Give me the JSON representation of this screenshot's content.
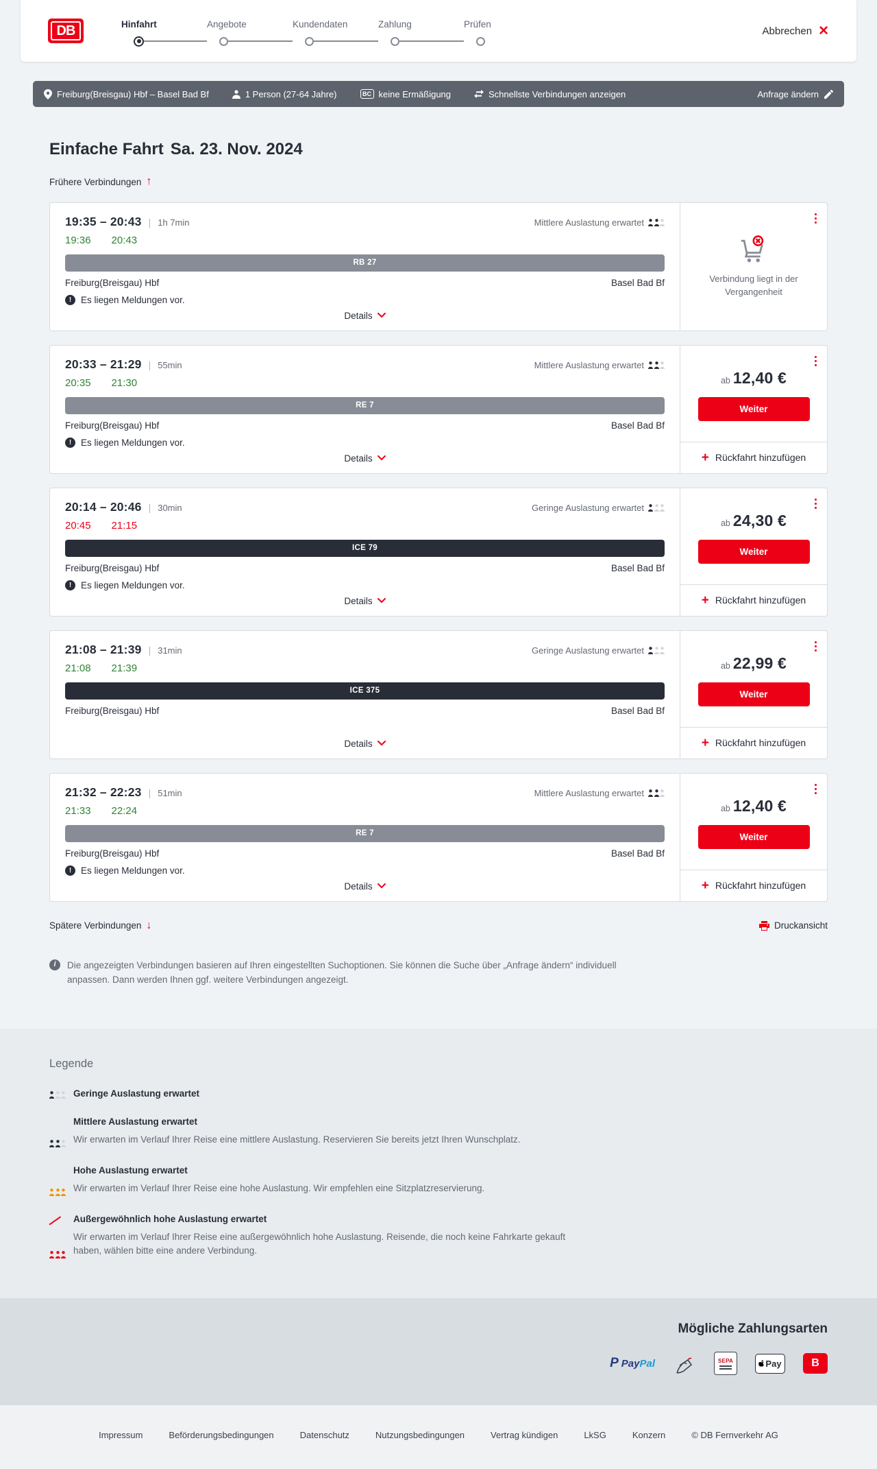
{
  "header": {
    "logo_text": "DB",
    "steps": [
      {
        "label": "Hinfahrt",
        "active": true
      },
      {
        "label": "Angebote",
        "active": false
      },
      {
        "label": "Kundendaten",
        "active": false
      },
      {
        "label": "Zahlung",
        "active": false
      },
      {
        "label": "Prüfen",
        "active": false
      }
    ],
    "cancel_label": "Abbrechen"
  },
  "search_bar": {
    "route": "Freiburg(Breisgau) Hbf – Basel Bad Bf",
    "passengers": "1 Person (27-64 Jahre)",
    "discount_badge": "BC",
    "discount": "keine Ermäßigung",
    "sort": "Schnellste Verbindungen anzeigen",
    "edit_label": "Anfrage ändern"
  },
  "journey": {
    "title": "Einfache Fahrt",
    "date": "Sa. 23. Nov. 2024",
    "earlier_label": "Frühere Verbindungen",
    "later_label": "Spätere Verbindungen",
    "print_label": "Druckansicht",
    "info_text": "Die angezeigten Verbindungen basieren auf Ihren eingestellten Suchoptionen. Sie können die Suche über „Anfrage ändern“ individuell anpassen. Dann werden Ihnen ggf. weitere Verbindungen angezeigt."
  },
  "labels": {
    "details": "Details",
    "ab": "ab",
    "weiter": "Weiter",
    "rueckfahrt": "Rückfahrt hinzufügen",
    "message": "Es liegen Meldungen vor."
  },
  "connections": [
    {
      "time_range": "19:35 – 20:43",
      "duration": "1h 7min",
      "dep": "19:36",
      "arr": "20:43",
      "times_status": "ontime",
      "occupancy": "Mittlere Auslastung erwartet",
      "occupancy_level": "mittel",
      "train": "RB 27",
      "train_type": "regional",
      "from": "Freiburg(Breisgau) Hbf",
      "to": "Basel Bad Bf",
      "has_message": true,
      "action": "past",
      "past_text": "Verbindung liegt in der Vergangenheit",
      "price": ""
    },
    {
      "time_range": "20:33 – 21:29",
      "duration": "55min",
      "dep": "20:35",
      "arr": "21:30",
      "times_status": "ontime",
      "occupancy": "Mittlere Auslastung erwartet",
      "occupancy_level": "mittel",
      "train": "RE 7",
      "train_type": "regional",
      "from": "Freiburg(Breisgau) Hbf",
      "to": "Basel Bad Bf",
      "has_message": true,
      "action": "offer",
      "past_text": "",
      "price": "12,40 €"
    },
    {
      "time_range": "20:14 – 20:46",
      "duration": "30min",
      "dep": "20:45",
      "arr": "21:15",
      "times_status": "delayed",
      "occupancy": "Geringe Auslastung erwartet",
      "occupancy_level": "gering",
      "train": "ICE 79",
      "train_type": "ice",
      "from": "Freiburg(Breisgau) Hbf",
      "to": "Basel Bad Bf",
      "has_message": true,
      "action": "offer",
      "past_text": "",
      "price": "24,30 €"
    },
    {
      "time_range": "21:08 – 21:39",
      "duration": "31min",
      "dep": "21:08",
      "arr": "21:39",
      "times_status": "ontime",
      "occupancy": "Geringe Auslastung erwartet",
      "occupancy_level": "gering",
      "train": "ICE 375",
      "train_type": "ice",
      "from": "Freiburg(Breisgau) Hbf",
      "to": "Basel Bad Bf",
      "has_message": false,
      "action": "offer",
      "past_text": "",
      "price": "22,99 €"
    },
    {
      "time_range": "21:32 – 22:23",
      "duration": "51min",
      "dep": "21:33",
      "arr": "22:24",
      "times_status": "ontime",
      "occupancy": "Mittlere Auslastung erwartet",
      "occupancy_level": "mittel",
      "train": "RE 7",
      "train_type": "regional",
      "from": "Freiburg(Breisgau) Hbf",
      "to": "Basel Bad Bf",
      "has_message": true,
      "action": "offer",
      "past_text": "",
      "price": "12,40 €"
    }
  ],
  "legend": {
    "title": "Legende",
    "items": [
      {
        "label": "Geringe Auslastung erwartet",
        "desc": ""
      },
      {
        "label": "Mittlere Auslastung erwartet",
        "desc": "Wir erwarten im Verlauf Ihrer Reise eine mittlere Auslastung. Reservieren Sie bereits jetzt Ihren Wunschplatz."
      },
      {
        "label": "Hohe Auslastung erwartet",
        "desc": "Wir erwarten im Verlauf Ihrer Reise eine hohe Auslastung. Wir empfehlen eine Sitzplatzreservierung."
      },
      {
        "label": "Außergewöhnlich hohe Auslastung erwartet",
        "desc": "Wir erwarten im Verlauf Ihrer Reise eine außergewöhnlich hohe Auslastung. Reisende, die noch keine Fahrkarte gekauft haben, wählen bitte eine andere Verbindung."
      }
    ]
  },
  "payment": {
    "title": "Mögliche Zahlungsarten",
    "paypal_p": "P",
    "paypal_pay": "Pay",
    "paypal_pal": "Pal",
    "sepa_label": "SEPA",
    "applepay_label": "Pay",
    "gift_label": "B"
  },
  "footer": {
    "links": [
      "Impressum",
      "Beförderungsbedingungen",
      "Datenschutz",
      "Nutzungsbedingungen",
      "Vertrag kündigen",
      "LkSG",
      "Konzern"
    ],
    "copyright": "© DB Fernverkehr AG"
  },
  "colors": {
    "accent": "#ec0016",
    "ontime": "#308236",
    "delayed": "#ec0016",
    "regional_bar": "#878c96",
    "ice_bar": "#282d37"
  }
}
